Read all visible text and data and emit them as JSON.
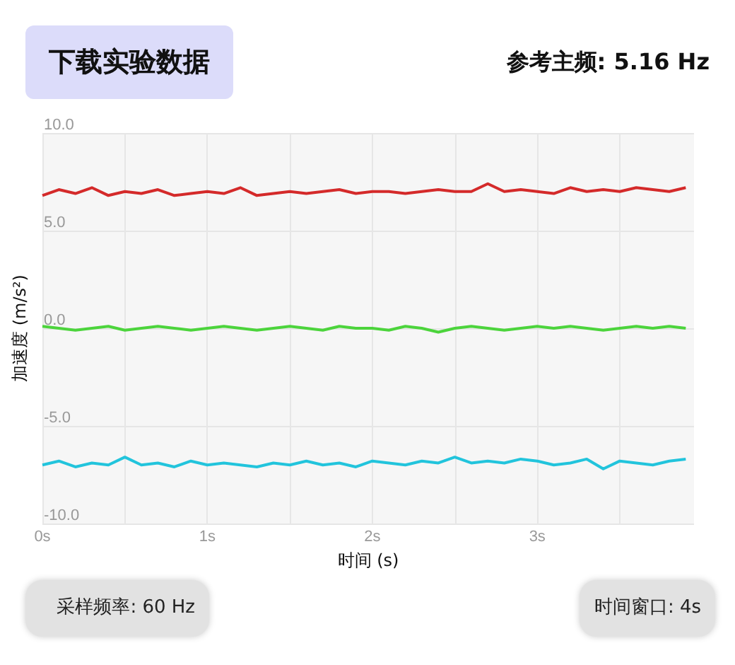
{
  "chart_data": {
    "type": "line",
    "xlabel": "时间 (s)",
    "ylabel": "加速度 (m/s²)",
    "annotations": [
      "下载实验数据",
      "参考主频: 5.16 Hz",
      "采样频率: 60 Hz",
      "时间窗口: 4s"
    ],
    "x": [
      0,
      0.1,
      0.2,
      0.3,
      0.4,
      0.5,
      0.6,
      0.7,
      0.8,
      0.9,
      1,
      1.1,
      1.2,
      1.3,
      1.4,
      1.5,
      1.6,
      1.7,
      1.8,
      1.9,
      2,
      2.1,
      2.2,
      2.3,
      2.4,
      2.5,
      2.6,
      2.7,
      2.8,
      2.9,
      3,
      3.1,
      3.2,
      3.3,
      3.4,
      3.5,
      3.6,
      3.7,
      3.8,
      3.9
    ],
    "series": [
      {
        "color": "#d42a2a",
        "values": [
          6.8,
          7.1,
          6.9,
          7.2,
          6.8,
          7.0,
          6.9,
          7.1,
          6.8,
          6.9,
          7.0,
          6.9,
          7.2,
          6.8,
          6.9,
          7.0,
          6.9,
          7.0,
          7.1,
          6.9,
          7.0,
          7.0,
          6.9,
          7.0,
          7.1,
          7.0,
          7.0,
          7.4,
          7.0,
          7.1,
          7.0,
          6.9,
          7.2,
          7.0,
          7.1,
          7.0,
          7.2,
          7.1,
          7.0,
          7.2
        ]
      },
      {
        "color": "#4cd43c",
        "values": [
          0.1,
          0.0,
          -0.1,
          0.0,
          0.1,
          -0.1,
          0.0,
          0.1,
          0.0,
          -0.1,
          0.0,
          0.1,
          0.0,
          -0.1,
          0.0,
          0.1,
          0.0,
          -0.1,
          0.1,
          0.0,
          0.0,
          -0.1,
          0.1,
          0.0,
          -0.2,
          0.0,
          0.1,
          0.0,
          -0.1,
          0.0,
          0.1,
          0.0,
          0.1,
          0.0,
          -0.1,
          0.0,
          0.1,
          0.0,
          0.1,
          0.0
        ]
      },
      {
        "color": "#22c4dc",
        "values": [
          -7.0,
          -6.8,
          -7.1,
          -6.9,
          -7.0,
          -6.6,
          -7.0,
          -6.9,
          -7.1,
          -6.8,
          -7.0,
          -6.9,
          -7.0,
          -7.1,
          -6.9,
          -7.0,
          -6.8,
          -7.0,
          -6.9,
          -7.1,
          -6.8,
          -6.9,
          -7.0,
          -6.8,
          -6.9,
          -6.6,
          -6.9,
          -6.8,
          -6.9,
          -6.7,
          -6.8,
          -7.0,
          -6.9,
          -6.7,
          -7.2,
          -6.8,
          -6.9,
          -7.0,
          -6.8,
          -6.7
        ]
      }
    ],
    "xlim": [
      0,
      3.95
    ],
    "xticks": [
      {
        "value": 0,
        "label": "0s"
      },
      {
        "value": 0.5,
        "label": null
      },
      {
        "value": 1,
        "label": "1s"
      },
      {
        "value": 1.5,
        "label": null
      },
      {
        "value": 2,
        "label": "2s"
      },
      {
        "value": 2.5,
        "label": null
      },
      {
        "value": 3,
        "label": "3s"
      },
      {
        "value": 3.5,
        "label": null
      }
    ],
    "ylim": [
      -10,
      10
    ],
    "yticks": [
      {
        "value": -10,
        "label": "-10.0"
      },
      {
        "value": -5,
        "label": "-5.0"
      },
      {
        "value": 0,
        "label": "0.0"
      },
      {
        "value": 5,
        "label": "5.0"
      },
      {
        "value": 10,
        "label": "10.0"
      }
    ],
    "grid": true,
    "marker": "none",
    "line_style": "solid"
  }
}
